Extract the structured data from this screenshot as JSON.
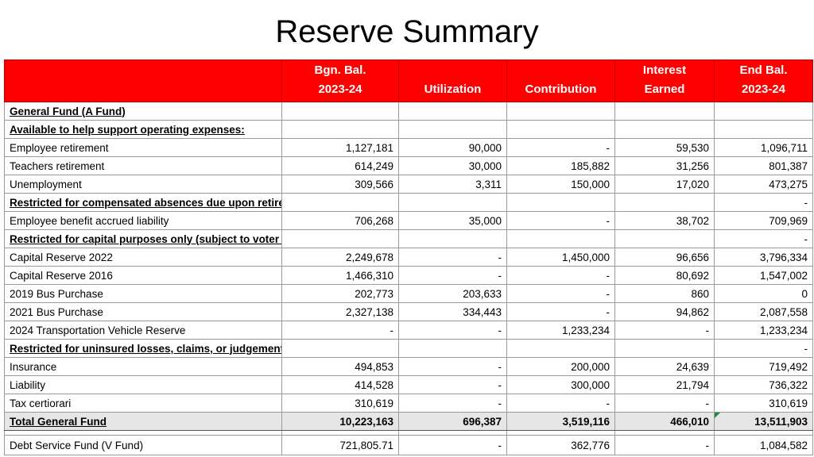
{
  "title": "Reserve Summary",
  "headers": {
    "bgn_1": "Bgn. Bal.",
    "bgn_2": "2023-24",
    "util": "Utilization",
    "contrib": "Contribution",
    "int_1": "Interest",
    "int_2": "Earned",
    "end_1": "End Bal.",
    "end_2": "2023-24"
  },
  "rows": [
    {
      "label": "General Fund (A Fund)",
      "type": "section",
      "bgn": "",
      "util": "",
      "contrib": "",
      "interest": "",
      "end": ""
    },
    {
      "label": "Available to help support operating expenses:",
      "type": "section",
      "bgn": "",
      "util": "",
      "contrib": "",
      "interest": "",
      "end": ""
    },
    {
      "label": "Employee retirement",
      "type": "item",
      "bgn": "1,127,181",
      "util": "90,000",
      "contrib": "-",
      "interest": "59,530",
      "end": "1,096,711"
    },
    {
      "label": "Teachers retirement",
      "type": "item",
      "bgn": "614,249",
      "util": "30,000",
      "contrib": "185,882",
      "interest": "31,256",
      "end": "801,387"
    },
    {
      "label": "Unemployment",
      "type": "item",
      "bgn": "309,566",
      "util": "3,311",
      "contrib": "150,000",
      "interest": "17,020",
      "end": "473,275"
    },
    {
      "label": "Restricted for compensated absences due upon retirement:",
      "type": "section",
      "bgn": "",
      "util": "",
      "contrib": "",
      "interest": "",
      "end": "-"
    },
    {
      "label": "Employee benefit accrued liability",
      "type": "item",
      "bgn": "706,268",
      "util": "35,000",
      "contrib": "-",
      "interest": "38,702",
      "end": "709,969"
    },
    {
      "label": "Restricted for capital purposes only (subject to voter approval)",
      "type": "section",
      "bgn": "",
      "util": "",
      "contrib": "",
      "interest": "",
      "end": "-"
    },
    {
      "label": "Capital Reserve 2022",
      "type": "item",
      "bgn": "2,249,678",
      "util": "-",
      "contrib": "1,450,000",
      "interest": "96,656",
      "end": "3,796,334"
    },
    {
      "label": "Capital Reserve 2016",
      "type": "item",
      "bgn": "1,466,310",
      "util": "-",
      "contrib": "-",
      "interest": "80,692",
      "end": "1,547,002"
    },
    {
      "label": "2019 Bus Purchase",
      "type": "item",
      "bgn": "202,773",
      "util": "203,633",
      "contrib": "-",
      "interest": "860",
      "end": "0"
    },
    {
      "label": "2021 Bus Purchase",
      "type": "item",
      "bgn": "2,327,138",
      "util": "334,443",
      "contrib": "-",
      "interest": "94,862",
      "end": "2,087,558"
    },
    {
      "label": "2024 Transportation Vehicle Reserve",
      "type": "item",
      "bgn": "-",
      "util": "-",
      "contrib": "1,233,234",
      "interest": "-",
      "end": "1,233,234"
    },
    {
      "label": "Restricted for uninsured losses, claims, or judgements:",
      "type": "section",
      "bgn": "",
      "util": "",
      "contrib": "",
      "interest": "",
      "end": "-"
    },
    {
      "label": "Insurance",
      "type": "item",
      "bgn": "494,853",
      "util": "-",
      "contrib": "200,000",
      "interest": "24,639",
      "end": "719,492"
    },
    {
      "label": "Liability",
      "type": "item",
      "bgn": "414,528",
      "util": "-",
      "contrib": "300,000",
      "interest": "21,794",
      "end": "736,322"
    },
    {
      "label": "Tax certiorari",
      "type": "item",
      "bgn": "310,619",
      "util": "-",
      "contrib": "-",
      "interest": "-",
      "end": "310,619"
    },
    {
      "label": "Total General Fund",
      "type": "total",
      "bgn": "10,223,163",
      "util": "696,387",
      "contrib": "3,519,116",
      "interest": "466,010",
      "end": "13,511,903"
    },
    {
      "label": "Debt Service Fund (V Fund)",
      "type": "debt",
      "bgn": "721,805.71",
      "util": "-",
      "contrib": "362,776",
      "interest": "-",
      "end": "1,084,582"
    }
  ]
}
